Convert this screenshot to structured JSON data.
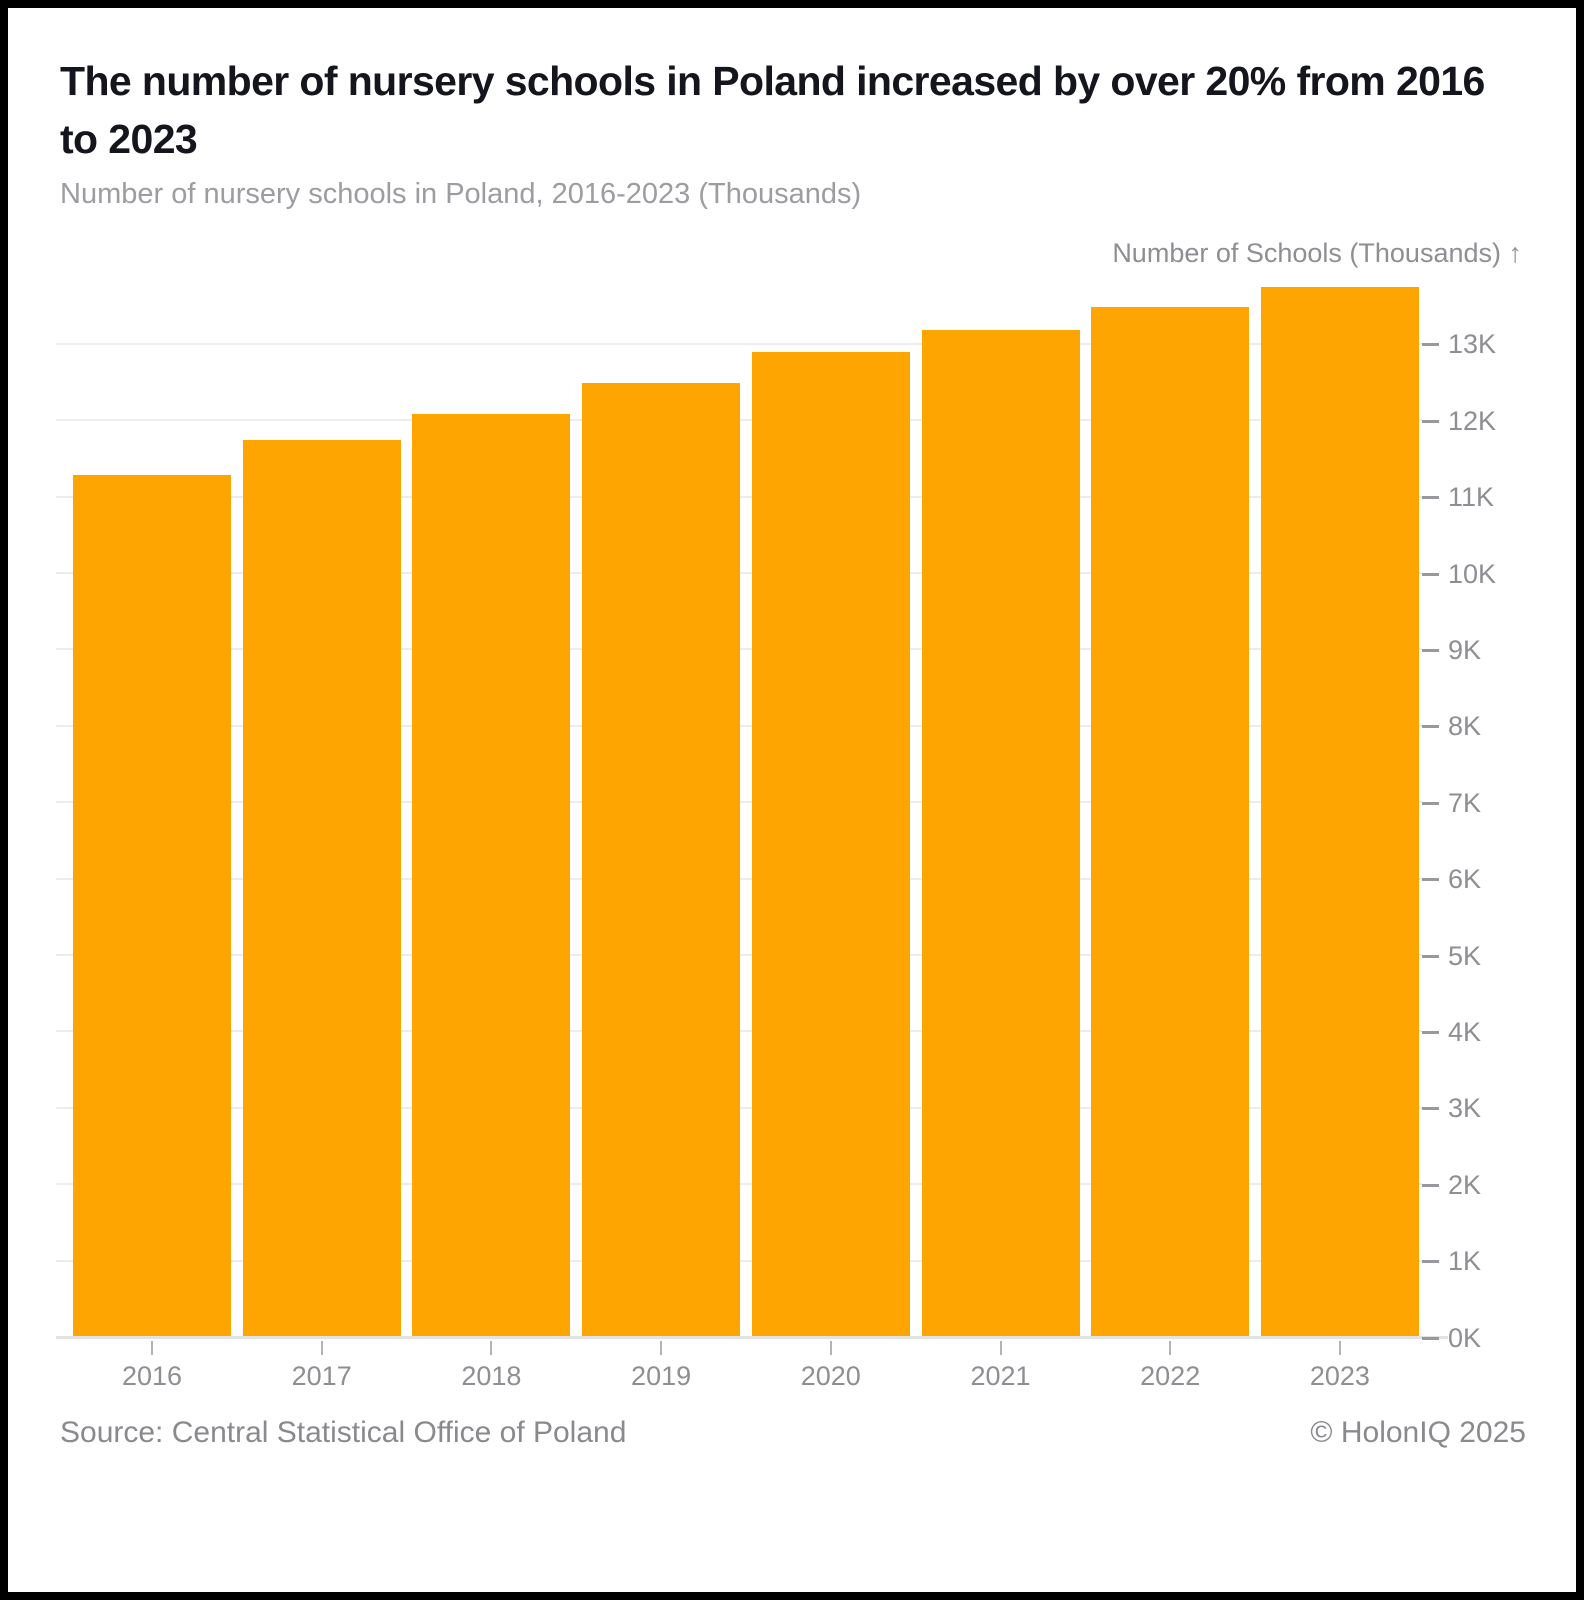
{
  "header": {
    "title": "The number of nursery schools in Poland increased by over 20% from 2016 to 2023",
    "subtitle": "Number of nursery schools in Poland, 2016-2023 (Thousands)"
  },
  "chart_data": {
    "type": "bar",
    "title": "The number of nursery schools in Poland increased by over 20% from 2016 to 2023",
    "subtitle": "Number of nursery schools in Poland, 2016-2023 (Thousands)",
    "categories": [
      "2016",
      "2017",
      "2018",
      "2019",
      "2020",
      "2021",
      "2022",
      "2023"
    ],
    "values": [
      11.3,
      11.75,
      12.1,
      12.5,
      12.9,
      13.2,
      13.5,
      13.75
    ],
    "values_unit": "thousand schools",
    "xlabel": "",
    "ylabel": "Number of Schools (Thousands) ↑",
    "ylim": [
      0,
      13.8
    ],
    "ytick_step": 1,
    "ytick_labels": [
      "0K",
      "1K",
      "2K",
      "3K",
      "4K",
      "5K",
      "6K",
      "7K",
      "8K",
      "9K",
      "10K",
      "11K",
      "12K",
      "13K"
    ],
    "grid": true,
    "yaxis_position": "right",
    "legend_position": "none",
    "bar_color": "#FFA502"
  },
  "footer": {
    "source": "Source: Central Statistical Office of Poland",
    "copyright": "© HolonIQ 2025"
  },
  "colors": {
    "frame": "#000000",
    "background": "#ffffff",
    "bar": "#FFA502",
    "title_text": "#15161d",
    "muted_text": "#8e8e93",
    "subtitle_text": "#9c9ca1",
    "gridline": "#ececec",
    "axis_line": "#e3e3e3"
  }
}
